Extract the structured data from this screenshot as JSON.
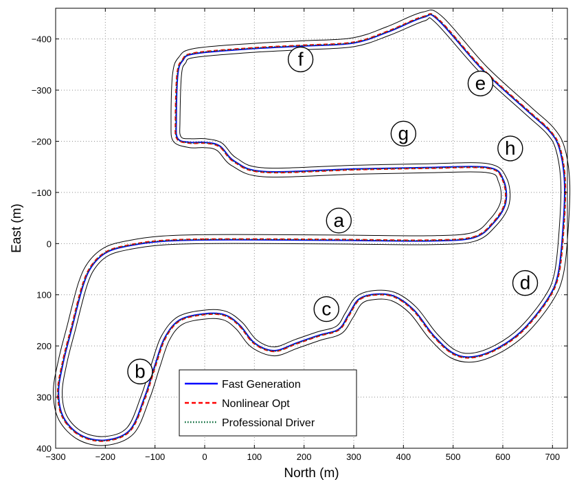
{
  "chart_data": {
    "type": "line",
    "title": "",
    "xlabel": "North (m)",
    "ylabel": "East (m)",
    "xlim": [
      -300,
      730
    ],
    "ylim": [
      400,
      -460
    ],
    "y_axis_reversed": true,
    "grid": true,
    "legend_position": "bottom-center",
    "xticks": [
      -300,
      -200,
      -100,
      0,
      100,
      200,
      300,
      400,
      500,
      600,
      700
    ],
    "yticks": [
      -400,
      -300,
      -200,
      -100,
      0,
      100,
      200,
      300,
      400
    ],
    "series": [
      {
        "name": "Fast Generation",
        "color": "#0000ff",
        "style": "solid"
      },
      {
        "name": "Nonlinear Opt",
        "color": "#ff0000",
        "style": "dashed"
      },
      {
        "name": "Professional Driver",
        "color": "#006633",
        "style": "dotted"
      }
    ],
    "centerline": [
      [
        0,
        -8
      ],
      [
        150,
        -8
      ],
      [
        300,
        -7
      ],
      [
        450,
        -6
      ],
      [
        540,
        -12
      ],
      [
        580,
        -40
      ],
      [
        605,
        -80
      ],
      [
        600,
        -125
      ],
      [
        570,
        -148
      ],
      [
        450,
        -148
      ],
      [
        300,
        -145
      ],
      [
        120,
        -140
      ],
      [
        60,
        -160
      ],
      [
        30,
        -190
      ],
      [
        0,
        -197
      ],
      [
        -30,
        -197
      ],
      [
        -55,
        -205
      ],
      [
        -58,
        -240
      ],
      [
        -55,
        -330
      ],
      [
        -45,
        -358
      ],
      [
        -20,
        -372
      ],
      [
        100,
        -382
      ],
      [
        200,
        -387
      ],
      [
        300,
        -393
      ],
      [
        370,
        -415
      ],
      [
        440,
        -443
      ],
      [
        470,
        -438
      ],
      [
        560,
        -340
      ],
      [
        650,
        -260
      ],
      [
        695,
        -220
      ],
      [
        715,
        -185
      ],
      [
        725,
        -120
      ],
      [
        722,
        -30
      ],
      [
        712,
        60
      ],
      [
        690,
        110
      ],
      [
        640,
        170
      ],
      [
        590,
        205
      ],
      [
        540,
        222
      ],
      [
        500,
        215
      ],
      [
        460,
        180
      ],
      [
        420,
        130
      ],
      [
        380,
        103
      ],
      [
        340,
        100
      ],
      [
        310,
        110
      ],
      [
        290,
        140
      ],
      [
        270,
        168
      ],
      [
        230,
        180
      ],
      [
        185,
        195
      ],
      [
        140,
        210
      ],
      [
        100,
        195
      ],
      [
        70,
        160
      ],
      [
        40,
        140
      ],
      [
        0,
        138
      ],
      [
        -50,
        150
      ],
      [
        -80,
        185
      ],
      [
        -100,
        240
      ],
      [
        -120,
        300
      ],
      [
        -150,
        365
      ],
      [
        -200,
        385
      ],
      [
        -250,
        375
      ],
      [
        -285,
        340
      ],
      [
        -295,
        290
      ],
      [
        -285,
        230
      ],
      [
        -268,
        165
      ],
      [
        -245,
        80
      ],
      [
        -225,
        40
      ],
      [
        -195,
        15
      ],
      [
        -150,
        3
      ],
      [
        -90,
        -5
      ],
      [
        0,
        -8
      ]
    ],
    "segment_labels": [
      {
        "text": "a",
        "x": 270,
        "y": -45
      },
      {
        "text": "b",
        "x": -130,
        "y": 250
      },
      {
        "text": "c",
        "x": 245,
        "y": 128
      },
      {
        "text": "d",
        "x": 645,
        "y": 77
      },
      {
        "text": "e",
        "x": 555,
        "y": -313
      },
      {
        "text": "f",
        "x": 193,
        "y": -360
      },
      {
        "text": "g",
        "x": 400,
        "y": -215
      },
      {
        "text": "h",
        "x": 615,
        "y": -186
      }
    ]
  }
}
